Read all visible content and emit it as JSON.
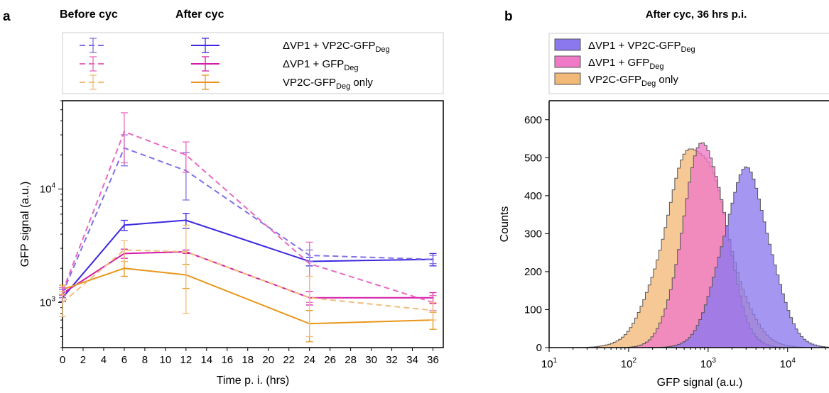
{
  "panel_a": {
    "letter": "a",
    "col_before": "Before cyc",
    "col_after": "After cyc",
    "chart_data": {
      "type": "line",
      "xlabel": "Time p. i. (hrs)",
      "ylabel": "GFP signal (a.u.)",
      "xlim": [
        0,
        37
      ],
      "ylim": [
        400,
        60000
      ],
      "yscale": "log",
      "x_ticks": [
        0,
        2,
        4,
        6,
        8,
        10,
        12,
        14,
        16,
        18,
        20,
        22,
        24,
        26,
        28,
        30,
        32,
        34,
        36
      ],
      "y_ticks": [
        {
          "value": 1000,
          "base": "10",
          "exp": "3"
        },
        {
          "value": 10000,
          "base": "10",
          "exp": "4"
        }
      ],
      "x": [
        0,
        6,
        12,
        24,
        36
      ],
      "series": [
        {
          "key": "deg_vp1_vp2c",
          "label_main": "ΔVP1 + VP2C-GFP",
          "label_sub": "Deg",
          "label_tail": "",
          "color": "#3b28e0",
          "condition": "after",
          "values": [
            1100,
            4800,
            5300,
            2300,
            2400
          ],
          "err": [
            80,
            500,
            800,
            200,
            300
          ]
        },
        {
          "key": "deg_vp1_gfp",
          "label_main": "ΔVP1 + GFP",
          "label_sub": "Deg",
          "label_tail": "",
          "color": "#d41ba8",
          "condition": "after",
          "values": [
            1200,
            2700,
            2800,
            1100,
            1100
          ],
          "err": [
            100,
            250,
            100,
            150,
            120
          ]
        },
        {
          "key": "vp2c_only",
          "label_main": "VP2C-GFP",
          "label_sub": "Deg",
          "label_tail": " only",
          "color": "#e8961a",
          "condition": "after",
          "values": [
            1300,
            2000,
            1750,
            650,
            700
          ],
          "err": [
            120,
            300,
            420,
            200,
            120
          ]
        },
        {
          "key": "deg_vp1_vp2c_before",
          "color": "#8070e8",
          "condition": "before",
          "values": [
            1200,
            23000,
            14500,
            2600,
            2400
          ],
          "err": [
            100,
            7000,
            6500,
            300,
            200
          ]
        },
        {
          "key": "deg_vp1_gfp_before",
          "color": "#e86ac0",
          "condition": "before",
          "values": [
            1250,
            32000,
            20000,
            2200,
            1000
          ],
          "err": [
            100,
            15000,
            6000,
            1200,
            150
          ]
        },
        {
          "key": "vp2c_only_before",
          "color": "#f0bd7a",
          "condition": "before",
          "values": [
            1000,
            2900,
            2800,
            1100,
            850
          ],
          "err": [
            250,
            600,
            2000,
            600,
            150
          ]
        }
      ]
    }
  },
  "panel_b": {
    "letter": "b",
    "chart_data": {
      "type": "area",
      "title": "After cyc, 36 hrs p.i.",
      "xlabel": "GFP signal (a.u.)",
      "ylabel": "Counts",
      "xscale": "log",
      "xlim": [
        10,
        50000
      ],
      "ylim": [
        0,
        650
      ],
      "y_ticks": [
        0,
        100,
        200,
        300,
        400,
        500,
        600
      ],
      "x_ticks": [
        {
          "value": 10,
          "base": "10",
          "exp": "1"
        },
        {
          "value": 100,
          "base": "10",
          "exp": "2"
        },
        {
          "value": 1000,
          "base": "10",
          "exp": "3"
        },
        {
          "value": 10000,
          "base": "10",
          "exp": "4"
        }
      ],
      "series": [
        {
          "key": "deg_vp1_vp2c",
          "label_main": "ΔVP1 + VP2C-GFP",
          "label_sub": "Deg",
          "label_tail": "",
          "color": "#8c78ee",
          "mode": "lognormal",
          "peak_x": 3000,
          "peak_count": 460,
          "sigma_decades": 0.3
        },
        {
          "key": "deg_vp1_gfp",
          "label_main": "ΔVP1 + GFP",
          "label_sub": "Deg",
          "label_tail": "",
          "color": "#f07ac8",
          "mode": "lognormal",
          "peak_x": 900,
          "peak_count": 540,
          "sigma_decades": 0.27
        },
        {
          "key": "vp2c_only",
          "label_main": "VP2C-GFP",
          "label_sub": "Deg",
          "label_tail": " only",
          "color": "#f2b877",
          "mode": "lognormal",
          "peak_x": 700,
          "peak_count": 535,
          "sigma_decades": 0.38
        }
      ]
    }
  }
}
